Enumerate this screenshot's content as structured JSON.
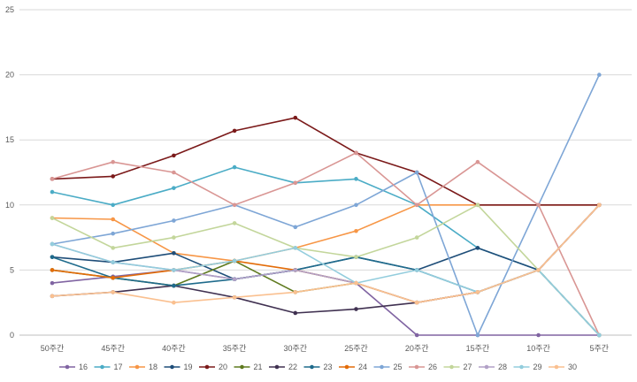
{
  "chart_data": {
    "type": "line",
    "title": "",
    "xlabel": "",
    "ylabel": "",
    "ylim": [
      0,
      25
    ],
    "y_ticks": [
      0,
      5,
      10,
      15,
      20,
      25
    ],
    "grid": "horizontal",
    "legend_position": "bottom",
    "categories": [
      "50주간",
      "45주간",
      "40주간",
      "35주간",
      "30주간",
      "25주간",
      "20주간",
      "15주간",
      "10주간",
      "5주간"
    ],
    "series": [
      {
        "name": "16",
        "color": "#8064a2",
        "values": [
          4,
          4.5,
          5,
          4.3,
          5,
          4,
          0,
          0,
          0,
          0
        ]
      },
      {
        "name": "17",
        "color": "#4bacc6",
        "values": [
          11,
          10,
          11.3,
          12.9,
          11.7,
          12,
          10,
          6.7,
          5,
          0
        ]
      },
      {
        "name": "18",
        "color": "#f79646",
        "values": [
          9,
          8.9,
          6.3,
          5.7,
          6.7,
          8,
          10,
          10,
          10,
          10
        ]
      },
      {
        "name": "19",
        "color": "#1f4e79",
        "values": [
          6,
          5.6,
          6.3,
          4.3,
          5,
          6,
          5,
          6.7,
          5,
          0
        ]
      },
      {
        "name": "20",
        "color": "#7b1a1a",
        "values": [
          12,
          12.2,
          13.8,
          15.7,
          16.7,
          14,
          12.5,
          10,
          10,
          10
        ]
      },
      {
        "name": "21",
        "color": "#5f7a1f",
        "values": [
          5,
          4.4,
          3.8,
          5.7,
          3.3,
          4,
          2.5,
          3.3,
          5,
          10
        ]
      },
      {
        "name": "22",
        "color": "#403151",
        "values": [
          3,
          3.3,
          3.8,
          2.9,
          1.7,
          2,
          2.5,
          3.3,
          5,
          10
        ]
      },
      {
        "name": "23",
        "color": "#1f6b8c",
        "values": [
          6,
          4.4,
          3.8,
          4.3,
          5,
          6,
          5,
          3.3,
          5,
          0
        ]
      },
      {
        "name": "24",
        "color": "#e36c09",
        "values": [
          5,
          4.4,
          5,
          5.7,
          5,
          4,
          2.5,
          3.3,
          5,
          10
        ]
      },
      {
        "name": "25",
        "color": "#7ea6d6",
        "values": [
          7,
          7.8,
          8.8,
          10,
          8.3,
          10,
          12.5,
          0,
          10,
          20
        ]
      },
      {
        "name": "26",
        "color": "#d99694",
        "values": [
          12,
          13.3,
          12.5,
          10,
          11.7,
          14,
          10,
          13.3,
          10,
          0
        ]
      },
      {
        "name": "27",
        "color": "#c3d69b",
        "values": [
          9,
          6.7,
          7.5,
          8.6,
          6.7,
          6,
          7.5,
          10,
          5,
          0
        ]
      },
      {
        "name": "28",
        "color": "#b2a1c7",
        "values": [
          7,
          5.6,
          5,
          4.3,
          5,
          4,
          2.5,
          3.3,
          5,
          10
        ]
      },
      {
        "name": "29",
        "color": "#93cddd",
        "values": [
          7,
          5.6,
          5,
          5.7,
          6.7,
          4,
          5,
          3.3,
          5,
          0
        ]
      },
      {
        "name": "30",
        "color": "#fac090",
        "values": [
          3,
          3.3,
          2.5,
          2.9,
          3.3,
          4,
          2.5,
          3.3,
          5,
          10
        ]
      }
    ]
  }
}
